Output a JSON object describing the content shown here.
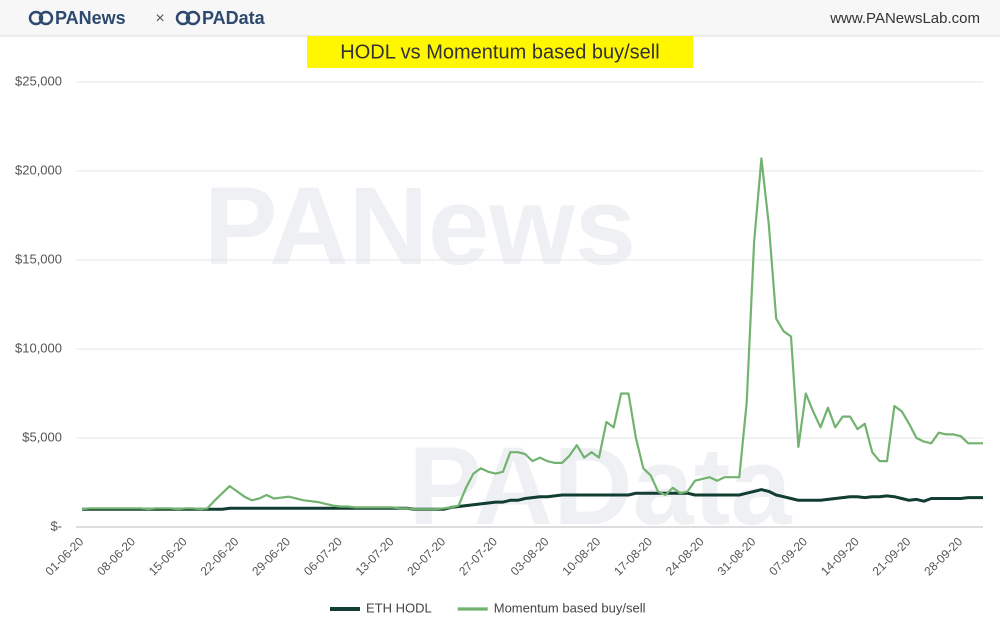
{
  "header": {
    "brand_left": "PANews",
    "separator": "×",
    "brand_right": "PAData",
    "url": "www.PANewsLab.com"
  },
  "watermarks": [
    "PANews",
    "PAData"
  ],
  "chart_data": {
    "type": "line",
    "title": "HODL vs Momentum based buy/sell",
    "categories": [
      "01-06-20",
      null,
      null,
      null,
      null,
      null,
      null,
      "08-06-20",
      null,
      null,
      null,
      null,
      null,
      null,
      "15-06-20",
      null,
      null,
      null,
      null,
      null,
      null,
      "22-06-20",
      null,
      null,
      null,
      null,
      null,
      null,
      "29-06-20",
      null,
      null,
      null,
      null,
      null,
      null,
      "06-07-20",
      null,
      null,
      null,
      null,
      null,
      null,
      "13-07-20",
      null,
      null,
      null,
      null,
      null,
      null,
      "20-07-20",
      null,
      null,
      null,
      null,
      null,
      null,
      "27-07-20",
      null,
      null,
      null,
      null,
      null,
      null,
      "03-08-20",
      null,
      null,
      null,
      null,
      null,
      null,
      "10-08-20",
      null,
      null,
      null,
      null,
      null,
      null,
      "17-08-20",
      null,
      null,
      null,
      null,
      null,
      null,
      "24-08-20",
      null,
      null,
      null,
      null,
      null,
      null,
      "31-08-20",
      null,
      null,
      null,
      null,
      null,
      null,
      "07-09-20",
      null,
      null,
      null,
      null,
      null,
      null,
      "14-09-20",
      null,
      null,
      null,
      null,
      null,
      null,
      "21-09-20",
      null,
      null,
      null,
      null,
      null,
      null,
      "28-09-20",
      null,
      null,
      null
    ],
    "series": [
      {
        "name": "ETH HODL",
        "color": "#123d32",
        "width": 3,
        "values": [
          1000,
          1000,
          1000,
          1000,
          1000,
          1000,
          1000,
          1000,
          1000,
          1000,
          1000,
          1000,
          1000,
          1000,
          1000,
          1000,
          1000,
          1000,
          1000,
          1000,
          1050,
          1050,
          1050,
          1050,
          1050,
          1050,
          1050,
          1050,
          1050,
          1050,
          1050,
          1050,
          1050,
          1050,
          1050,
          1050,
          1050,
          1050,
          1050,
          1050,
          1050,
          1050,
          1050,
          1050,
          1050,
          1000,
          1000,
          1000,
          1000,
          1000,
          1100,
          1150,
          1200,
          1250,
          1300,
          1350,
          1400,
          1400,
          1500,
          1500,
          1600,
          1650,
          1700,
          1700,
          1750,
          1800,
          1800,
          1800,
          1800,
          1800,
          1800,
          1800,
          1800,
          1800,
          1800,
          1900,
          1900,
          1900,
          1900,
          1900,
          1900,
          1900,
          1900,
          1800,
          1800,
          1800,
          1800,
          1800,
          1800,
          1800,
          1900,
          2000,
          2100,
          2000,
          1800,
          1700,
          1600,
          1500,
          1500,
          1500,
          1500,
          1550,
          1600,
          1650,
          1700,
          1700,
          1650,
          1700,
          1700,
          1750,
          1700,
          1600,
          1500,
          1550,
          1450,
          1600,
          1600,
          1600,
          1600,
          1600,
          1650,
          1650,
          1650
        ]
      },
      {
        "name": "Momentum based buy/sell",
        "color": "#72b36f",
        "width": 2.2,
        "values": [
          1000,
          1050,
          1050,
          1050,
          1050,
          1050,
          1050,
          1050,
          1050,
          1000,
          1050,
          1050,
          1050,
          1000,
          1050,
          1050,
          1000,
          1050,
          1500,
          1900,
          2300,
          2000,
          1700,
          1500,
          1600,
          1800,
          1600,
          1650,
          1700,
          1600,
          1500,
          1450,
          1400,
          1300,
          1200,
          1150,
          1150,
          1100,
          1100,
          1100,
          1100,
          1100,
          1100,
          1050,
          1050,
          1000,
          1000,
          1000,
          1000,
          1050,
          1100,
          1200,
          2200,
          3000,
          3300,
          3100,
          3000,
          3100,
          4200,
          4200,
          4100,
          3700,
          3900,
          3700,
          3600,
          3600,
          4000,
          4600,
          3900,
          4200,
          3900,
          5900,
          5600,
          7500,
          7500,
          5000,
          3300,
          2900,
          2000,
          1800,
          2200,
          1900,
          2000,
          2600,
          2700,
          2800,
          2600,
          2800,
          2800,
          2800,
          7000,
          16000,
          20700,
          17000,
          11700,
          11000,
          10700,
          4500,
          7500,
          6500,
          5600,
          6700,
          5600,
          6200,
          6200,
          5500,
          5800,
          4200,
          3700,
          3700,
          6800,
          6500,
          5800,
          5000,
          4800,
          4700,
          5300,
          5200,
          5200,
          5100,
          4700,
          4700,
          4700
        ]
      }
    ],
    "ylim": [
      0,
      25000
    ],
    "yticks": [
      {
        "value": 0,
        "label": "$-"
      },
      {
        "value": 5000,
        "label": "$5,000"
      },
      {
        "value": 10000,
        "label": "$10,000"
      },
      {
        "value": 15000,
        "label": "$15,000"
      },
      {
        "value": 20000,
        "label": "$20,000"
      },
      {
        "value": 25000,
        "label": "$25,000"
      }
    ],
    "grid": true,
    "legend": "bottom"
  }
}
